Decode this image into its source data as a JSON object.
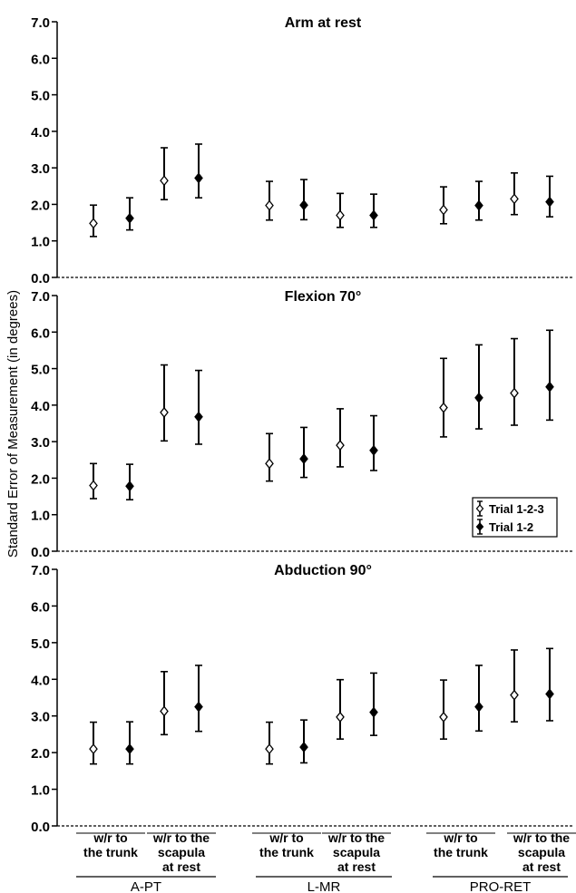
{
  "chart_data": {
    "type": "errorbar",
    "y_axis_label": "Standard Error of Measurement (in degrees)",
    "ylim": [
      0,
      7
    ],
    "y_ticks": [
      "0.0",
      "1.0",
      "2.0",
      "3.0",
      "4.0",
      "5.0",
      "6.0",
      "7.0"
    ],
    "legend": {
      "entries": [
        {
          "label": "Trial 1-2-3",
          "marker": "open-diamond"
        },
        {
          "label": "Trial 1-2",
          "marker": "filled-diamond"
        }
      ],
      "placement": "middle panel, right"
    },
    "category_groups": [
      {
        "name": "A-PT",
        "subcategories": [
          [
            "w/r to",
            "the trunk"
          ],
          [
            "w/r to the",
            "scapula",
            "at rest"
          ]
        ]
      },
      {
        "name": "L-MR",
        "subcategories": [
          [
            "w/r to",
            "the trunk"
          ],
          [
            "w/r to the",
            "scapula",
            "at rest"
          ]
        ]
      },
      {
        "name": "PRO-RET",
        "subcategories": [
          [
            "w/r to",
            "the trunk"
          ],
          [
            "w/r to the",
            "scapula",
            "at rest"
          ]
        ]
      }
    ],
    "series_names": [
      "Trial 1-2-3",
      "Trial 1-2"
    ],
    "panels": [
      {
        "title": "Arm at rest",
        "points": [
          {
            "group": "A-PT",
            "sub": "w/r to the trunk",
            "series": "Trial 1-2-3",
            "y": 1.48,
            "low": 1.12,
            "high": 1.98
          },
          {
            "group": "A-PT",
            "sub": "w/r to the trunk",
            "series": "Trial 1-2",
            "y": 1.62,
            "low": 1.3,
            "high": 2.18
          },
          {
            "group": "A-PT",
            "sub": "w/r to the scapula at rest",
            "series": "Trial 1-2-3",
            "y": 2.65,
            "low": 2.13,
            "high": 3.55
          },
          {
            "group": "A-PT",
            "sub": "w/r to the scapula at rest",
            "series": "Trial 1-2",
            "y": 2.72,
            "low": 2.18,
            "high": 3.65
          },
          {
            "group": "L-MR",
            "sub": "w/r to the trunk",
            "series": "Trial 1-2-3",
            "y": 1.97,
            "low": 1.57,
            "high": 2.63
          },
          {
            "group": "L-MR",
            "sub": "w/r to the trunk",
            "series": "Trial 1-2",
            "y": 1.98,
            "low": 1.58,
            "high": 2.68
          },
          {
            "group": "L-MR",
            "sub": "w/r to the scapula at rest",
            "series": "Trial 1-2-3",
            "y": 1.7,
            "low": 1.37,
            "high": 2.3
          },
          {
            "group": "L-MR",
            "sub": "w/r to the scapula at rest",
            "series": "Trial 1-2",
            "y": 1.7,
            "low": 1.37,
            "high": 2.28
          },
          {
            "group": "PRO-RET",
            "sub": "w/r to the trunk",
            "series": "Trial 1-2-3",
            "y": 1.85,
            "low": 1.47,
            "high": 2.48
          },
          {
            "group": "PRO-RET",
            "sub": "w/r to the trunk",
            "series": "Trial 1-2",
            "y": 1.97,
            "low": 1.57,
            "high": 2.63
          },
          {
            "group": "PRO-RET",
            "sub": "w/r to the scapula at rest",
            "series": "Trial 1-2-3",
            "y": 2.15,
            "low": 1.72,
            "high": 2.86
          },
          {
            "group": "PRO-RET",
            "sub": "w/r to the scapula at rest",
            "series": "Trial 1-2",
            "y": 2.07,
            "low": 1.66,
            "high": 2.77
          }
        ]
      },
      {
        "title": "Flexion 70°",
        "points": [
          {
            "group": "A-PT",
            "sub": "w/r to the trunk",
            "series": "Trial 1-2-3",
            "y": 1.8,
            "low": 1.44,
            "high": 2.4
          },
          {
            "group": "A-PT",
            "sub": "w/r to the trunk",
            "series": "Trial 1-2",
            "y": 1.78,
            "low": 1.41,
            "high": 2.38
          },
          {
            "group": "A-PT",
            "sub": "w/r to the scapula at rest",
            "series": "Trial 1-2-3",
            "y": 3.8,
            "low": 3.02,
            "high": 5.1
          },
          {
            "group": "A-PT",
            "sub": "w/r to the scapula at rest",
            "series": "Trial 1-2",
            "y": 3.68,
            "low": 2.93,
            "high": 4.95
          },
          {
            "group": "L-MR",
            "sub": "w/r to the trunk",
            "series": "Trial 1-2-3",
            "y": 2.4,
            "low": 1.92,
            "high": 3.22
          },
          {
            "group": "L-MR",
            "sub": "w/r to the trunk",
            "series": "Trial 1-2",
            "y": 2.53,
            "low": 2.02,
            "high": 3.39
          },
          {
            "group": "L-MR",
            "sub": "w/r to the scapula at rest",
            "series": "Trial 1-2-3",
            "y": 2.9,
            "low": 2.31,
            "high": 3.9
          },
          {
            "group": "L-MR",
            "sub": "w/r to the scapula at rest",
            "series": "Trial 1-2",
            "y": 2.76,
            "low": 2.21,
            "high": 3.71
          },
          {
            "group": "PRO-RET",
            "sub": "w/r to the trunk",
            "series": "Trial 1-2-3",
            "y": 3.93,
            "low": 3.13,
            "high": 5.28
          },
          {
            "group": "PRO-RET",
            "sub": "w/r to the trunk",
            "series": "Trial 1-2",
            "y": 4.2,
            "low": 3.35,
            "high": 5.65
          },
          {
            "group": "PRO-RET",
            "sub": "w/r to the scapula at rest",
            "series": "Trial 1-2-3",
            "y": 4.33,
            "low": 3.45,
            "high": 5.82
          },
          {
            "group": "PRO-RET",
            "sub": "w/r to the scapula at rest",
            "series": "Trial 1-2",
            "y": 4.5,
            "low": 3.59,
            "high": 6.05
          }
        ]
      },
      {
        "title": "Abduction 90°",
        "points": [
          {
            "group": "A-PT",
            "sub": "w/r to the trunk",
            "series": "Trial 1-2-3",
            "y": 2.1,
            "low": 1.69,
            "high": 2.83
          },
          {
            "group": "A-PT",
            "sub": "w/r to the trunk",
            "series": "Trial 1-2",
            "y": 2.1,
            "low": 1.69,
            "high": 2.84
          },
          {
            "group": "A-PT",
            "sub": "w/r to the scapula at rest",
            "series": "Trial 1-2-3",
            "y": 3.13,
            "low": 2.49,
            "high": 4.21
          },
          {
            "group": "A-PT",
            "sub": "w/r to the scapula at rest",
            "series": "Trial 1-2",
            "y": 3.25,
            "low": 2.58,
            "high": 4.38
          },
          {
            "group": "L-MR",
            "sub": "w/r to the trunk",
            "series": "Trial 1-2-3",
            "y": 2.1,
            "low": 1.69,
            "high": 2.83
          },
          {
            "group": "L-MR",
            "sub": "w/r to the trunk",
            "series": "Trial 1-2",
            "y": 2.15,
            "low": 1.72,
            "high": 2.89
          },
          {
            "group": "L-MR",
            "sub": "w/r to the scapula at rest",
            "series": "Trial 1-2-3",
            "y": 2.97,
            "low": 2.37,
            "high": 3.99
          },
          {
            "group": "L-MR",
            "sub": "w/r to the scapula at rest",
            "series": "Trial 1-2",
            "y": 3.1,
            "low": 2.47,
            "high": 4.17
          },
          {
            "group": "PRO-RET",
            "sub": "w/r to the trunk",
            "series": "Trial 1-2-3",
            "y": 2.97,
            "low": 2.37,
            "high": 3.98
          },
          {
            "group": "PRO-RET",
            "sub": "w/r to the trunk",
            "series": "Trial 1-2",
            "y": 3.25,
            "low": 2.59,
            "high": 4.38
          },
          {
            "group": "PRO-RET",
            "sub": "w/r to the scapula at rest",
            "series": "Trial 1-2-3",
            "y": 3.57,
            "low": 2.84,
            "high": 4.8
          },
          {
            "group": "PRO-RET",
            "sub": "w/r to the scapula at rest",
            "series": "Trial 1-2",
            "y": 3.6,
            "low": 2.87,
            "high": 4.84
          }
        ]
      }
    ],
    "colors": {
      "marker_stroke": "#000000",
      "open_marker_fill": "#ffffff",
      "filled_marker_fill": "#000000",
      "axis": "#000000"
    }
  }
}
